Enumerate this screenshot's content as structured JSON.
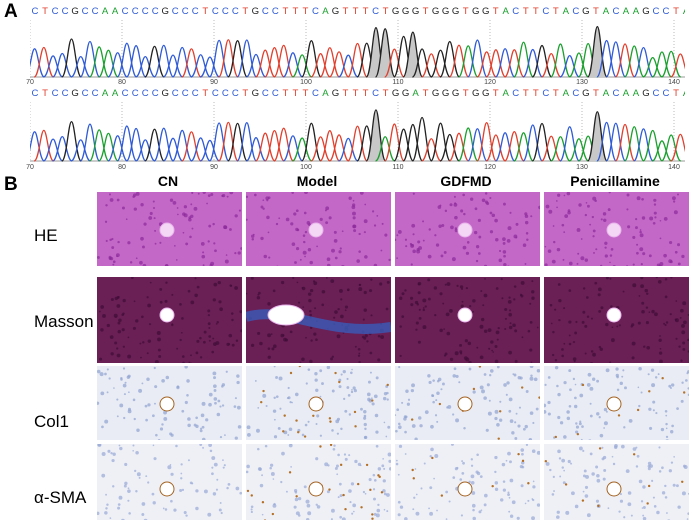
{
  "panel_a": {
    "label": "A",
    "sequence_top": "CTCCGCCAACCCCGCCCTCCCTGCCTTTCAGTTTCTGGGTGGGTGGTACTTCTACGTACAAGCCTACAAAT",
    "sequence_bottom": "CTCCGCCAACCCCGCCCTCCCTGCCTTTCAGTTTCTGGATGGGTGGTACTTCTACGTACAAGCCTACAAAT",
    "ticks": [
      "70",
      "80",
      "90",
      "100",
      "110",
      "120",
      "130",
      "140"
    ],
    "base_colors": {
      "A": "#1aa02e",
      "C": "#2f5bd6",
      "G": "#222222",
      "T": "#e0402e"
    }
  },
  "panel_b": {
    "label": "B",
    "columns": [
      "CN",
      "Model",
      "GDFMD",
      "Penicillamine"
    ],
    "rows": [
      "HE",
      "Masson",
      "Col1",
      "α-SMA"
    ]
  }
}
